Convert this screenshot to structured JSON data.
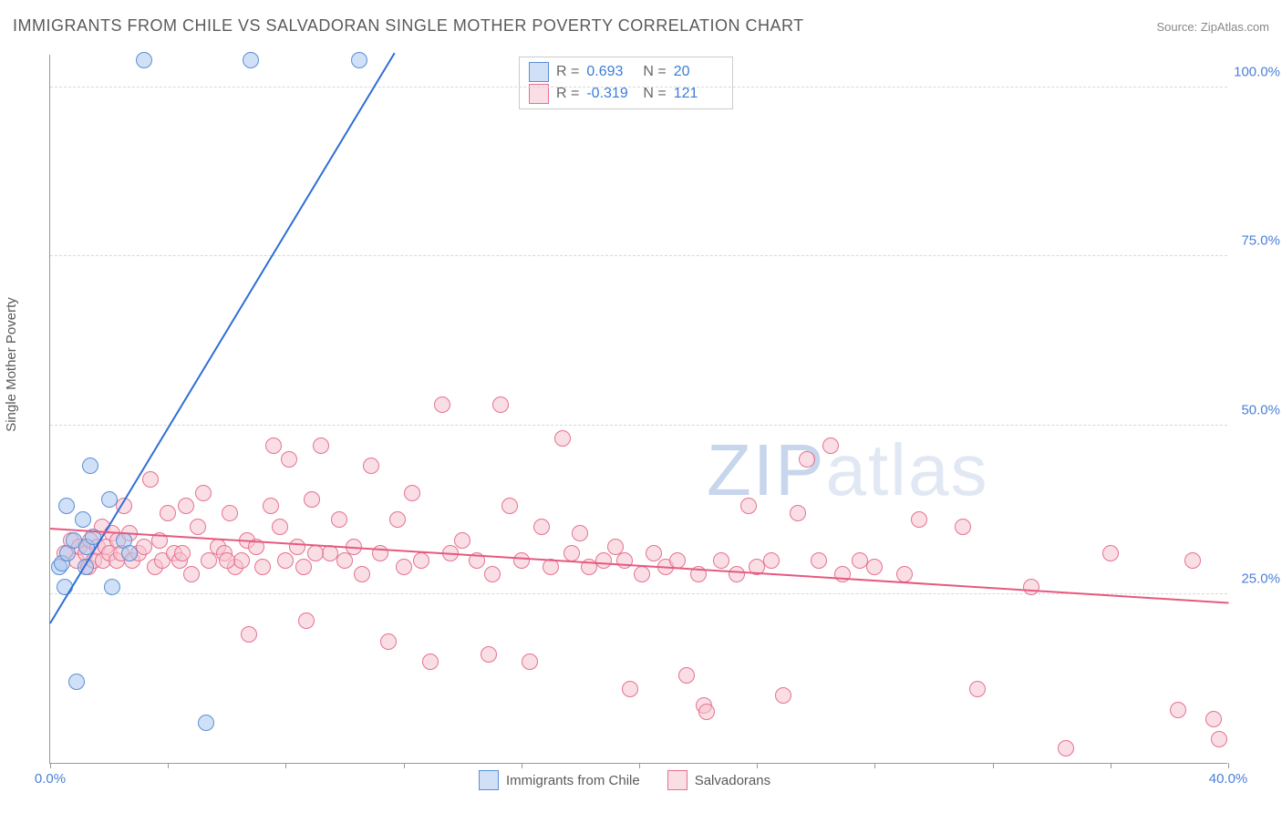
{
  "title": "IMMIGRANTS FROM CHILE VS SALVADORAN SINGLE MOTHER POVERTY CORRELATION CHART",
  "source_label": "Source: ZipAtlas.com",
  "ylabel": "Single Mother Poverty",
  "watermark_a": "ZIP",
  "watermark_b": "atlas",
  "chart": {
    "type": "scatter",
    "xlim": [
      0,
      40
    ],
    "ylim": [
      0,
      105
    ],
    "xtick_values": [
      0,
      4,
      8,
      12,
      16,
      20,
      24,
      28,
      32,
      36,
      40
    ],
    "xtick_labels": {
      "0": "0.0%",
      "40": "40.0%"
    },
    "ytick_values": [
      25,
      50,
      75,
      100
    ],
    "ytick_labels": [
      "25.0%",
      "50.0%",
      "75.0%",
      "100.0%"
    ],
    "grid_color": "#d8d8d8",
    "axis_color": "#999999",
    "background_color": "#ffffff",
    "label_color": "#4a7fd8",
    "marker_radius": 9,
    "marker_stroke_width": 1.5,
    "series": [
      {
        "name": "Immigrants from Chile",
        "fill": "#a9c6ee",
        "stroke": "#5b8fd6",
        "fill_opacity": 0.55,
        "R": "0.693",
        "N": "20",
        "trend": {
          "x1": 0,
          "y1": 20.5,
          "x2": 11.7,
          "y2": 105,
          "color": "#2d6fd6",
          "width": 2.2
        },
        "points": [
          [
            0.3,
            29
          ],
          [
            0.9,
            12
          ],
          [
            0.5,
            26
          ],
          [
            0.4,
            29.5
          ],
          [
            0.6,
            31
          ],
          [
            0.8,
            33
          ],
          [
            1.1,
            36
          ],
          [
            0.55,
            38
          ],
          [
            1.2,
            29
          ],
          [
            1.25,
            32
          ],
          [
            2.1,
            26
          ],
          [
            1.45,
            33.5
          ],
          [
            2.5,
            33
          ],
          [
            1.35,
            44
          ],
          [
            2.0,
            39
          ],
          [
            5.3,
            6.0
          ],
          [
            3.2,
            104
          ],
          [
            6.8,
            104
          ],
          [
            10.5,
            104
          ],
          [
            2.7,
            31
          ]
        ]
      },
      {
        "name": "Salvadorans",
        "fill": "#f6c2d0",
        "stroke": "#e6718f",
        "fill_opacity": 0.55,
        "R": "-0.319",
        "N": "121",
        "trend": {
          "x1": 0,
          "y1": 34.5,
          "x2": 40,
          "y2": 23.5,
          "color": "#e6597f",
          "width": 2.2
        },
        "points": [
          [
            0.5,
            31
          ],
          [
            0.7,
            33
          ],
          [
            0.9,
            30
          ],
          [
            1.0,
            32
          ],
          [
            1.2,
            31
          ],
          [
            1.3,
            29
          ],
          [
            1.35,
            33
          ],
          [
            1.5,
            30
          ],
          [
            1.6,
            32
          ],
          [
            1.75,
            35
          ],
          [
            1.8,
            30
          ],
          [
            1.9,
            32
          ],
          [
            2.0,
            31
          ],
          [
            2.1,
            34
          ],
          [
            2.25,
            30
          ],
          [
            2.3,
            33
          ],
          [
            2.4,
            31
          ],
          [
            2.5,
            38
          ],
          [
            2.7,
            34
          ],
          [
            2.8,
            30
          ],
          [
            3.0,
            31
          ],
          [
            3.2,
            32
          ],
          [
            3.4,
            42
          ],
          [
            3.55,
            29
          ],
          [
            3.7,
            33
          ],
          [
            3.8,
            30
          ],
          [
            4.0,
            37
          ],
          [
            4.2,
            31
          ],
          [
            4.4,
            30
          ],
          [
            4.6,
            38
          ],
          [
            4.8,
            28
          ],
          [
            5.0,
            35
          ],
          [
            5.2,
            40
          ],
          [
            5.4,
            30
          ],
          [
            5.7,
            32
          ],
          [
            5.9,
            31
          ],
          [
            6.1,
            37
          ],
          [
            6.3,
            29
          ],
          [
            6.5,
            30
          ],
          [
            6.7,
            33
          ],
          [
            6.75,
            19
          ],
          [
            7.0,
            32
          ],
          [
            7.2,
            29
          ],
          [
            7.5,
            38
          ],
          [
            7.6,
            47
          ],
          [
            7.8,
            35
          ],
          [
            8.0,
            30
          ],
          [
            8.1,
            45
          ],
          [
            8.4,
            32
          ],
          [
            8.6,
            29
          ],
          [
            8.7,
            21
          ],
          [
            8.9,
            39
          ],
          [
            9.2,
            47
          ],
          [
            9.5,
            31
          ],
          [
            9.8,
            36
          ],
          [
            10.0,
            30
          ],
          [
            10.3,
            32
          ],
          [
            10.6,
            28
          ],
          [
            10.9,
            44
          ],
          [
            11.2,
            31
          ],
          [
            11.5,
            18
          ],
          [
            11.8,
            36
          ],
          [
            12.0,
            29
          ],
          [
            12.3,
            40
          ],
          [
            12.6,
            30
          ],
          [
            12.9,
            15
          ],
          [
            13.3,
            53
          ],
          [
            13.6,
            31
          ],
          [
            14.0,
            33
          ],
          [
            14.5,
            30
          ],
          [
            14.9,
            16
          ],
          [
            15.3,
            53
          ],
          [
            15.6,
            38
          ],
          [
            16.0,
            30
          ],
          [
            16.3,
            15
          ],
          [
            16.7,
            35
          ],
          [
            17.0,
            29
          ],
          [
            17.4,
            48
          ],
          [
            17.7,
            31
          ],
          [
            18.0,
            34
          ],
          [
            18.3,
            29
          ],
          [
            18.8,
            30
          ],
          [
            19.2,
            32
          ],
          [
            19.5,
            30
          ],
          [
            19.7,
            11
          ],
          [
            20.1,
            28
          ],
          [
            20.5,
            31
          ],
          [
            20.9,
            29
          ],
          [
            21.3,
            30
          ],
          [
            21.6,
            13
          ],
          [
            22.0,
            28
          ],
          [
            22.2,
            8.5
          ],
          [
            22.3,
            7.5
          ],
          [
            22.8,
            30
          ],
          [
            23.3,
            28
          ],
          [
            23.7,
            38
          ],
          [
            24.0,
            29
          ],
          [
            24.5,
            30
          ],
          [
            24.9,
            10
          ],
          [
            25.4,
            37
          ],
          [
            25.7,
            45
          ],
          [
            26.1,
            30
          ],
          [
            26.5,
            47
          ],
          [
            26.9,
            28
          ],
          [
            27.5,
            30
          ],
          [
            28.0,
            29
          ],
          [
            29.0,
            28
          ],
          [
            29.5,
            36
          ],
          [
            31.0,
            35
          ],
          [
            31.5,
            11
          ],
          [
            33.3,
            26
          ],
          [
            34.5,
            2.2
          ],
          [
            36.0,
            31
          ],
          [
            38.3,
            7.8
          ],
          [
            38.8,
            30
          ],
          [
            39.5,
            6.5
          ],
          [
            39.7,
            3.5
          ],
          [
            15.0,
            28
          ],
          [
            9.0,
            31
          ],
          [
            6.0,
            30
          ],
          [
            4.5,
            31
          ]
        ]
      }
    ]
  },
  "legend_corr": {
    "r_label": "R  =",
    "n_label": "N  ="
  }
}
